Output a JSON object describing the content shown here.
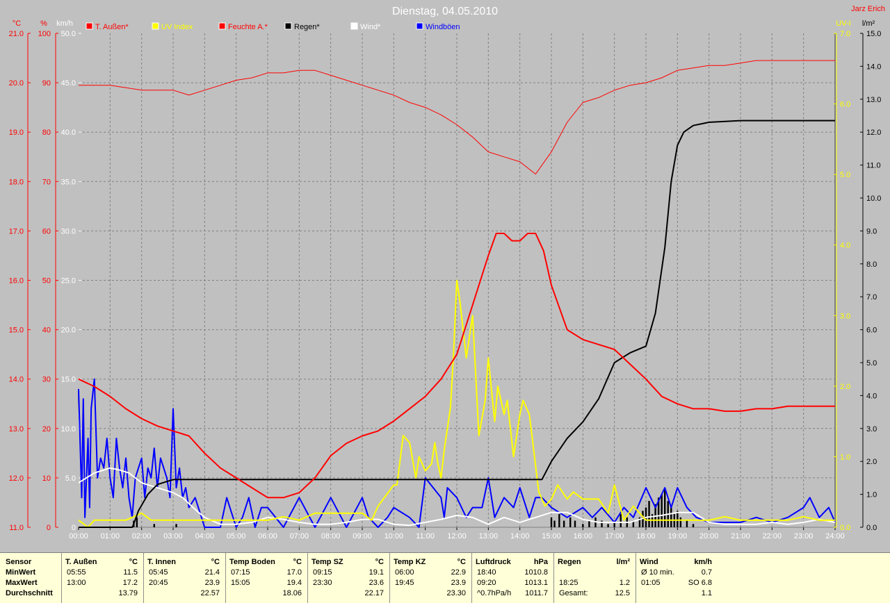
{
  "header": {
    "title": "Dienstag, 04.05.2010",
    "author": "Jarz Erich"
  },
  "colors": {
    "t_aussen": "#ff0000",
    "uv": "#ffff00",
    "feuchte": "#ff0000",
    "regen": "#000000",
    "wind": "#ffffff",
    "windboeen": "#0000ff",
    "background": "#c0c0c0",
    "grid": "#808080",
    "table_bg": "#ffffd8"
  },
  "chart_data": {
    "type": "line",
    "title": "Dienstag, 04.05.2010",
    "x_range": [
      "00:00",
      "24:00"
    ],
    "x_ticks": [
      "00:00",
      "01:00",
      "02:00",
      "03:00",
      "04:00",
      "05:00",
      "06:00",
      "07:00",
      "08:00",
      "09:00",
      "10:00",
      "11:00",
      "12:00",
      "13:00",
      "14:00",
      "15:00",
      "16:00",
      "17:00",
      "18:00",
      "19:00",
      "20:00",
      "21:00",
      "22:00",
      "23:00",
      "24:00"
    ],
    "grid": true,
    "legend_position": "top",
    "axes": [
      {
        "id": "temp",
        "label": "°C",
        "color": "#ff0000",
        "side": "left",
        "range": [
          11,
          21
        ],
        "ticks": [
          "11.0",
          "12.0",
          "13.0",
          "14.0",
          "15.0",
          "16.0",
          "17.0",
          "18.0",
          "19.0",
          "20.0",
          "21.0"
        ]
      },
      {
        "id": "hum",
        "label": "%",
        "color": "#ff0000",
        "side": "left",
        "range": [
          0,
          100
        ],
        "ticks": [
          "0",
          "10",
          "20",
          "30",
          "40",
          "50",
          "60",
          "70",
          "80",
          "90",
          "100"
        ]
      },
      {
        "id": "wind",
        "label": "km/h",
        "color": "#ffffff",
        "side": "left",
        "range": [
          0,
          50
        ],
        "ticks": [
          "0",
          "5.0",
          "10.0",
          "15.0",
          "20.0",
          "25.0",
          "30.0",
          "35.0",
          "40.0",
          "45.0",
          "50.0"
        ]
      },
      {
        "id": "uv",
        "label": "UV-I",
        "color": "#ffff00",
        "side": "right",
        "range": [
          0,
          7
        ],
        "ticks": [
          "0.0",
          "1.0",
          "2.0",
          "3.0",
          "4.0",
          "5.0",
          "6.0",
          "7.0"
        ]
      },
      {
        "id": "rain",
        "label": "l/m²",
        "color": "#000000",
        "side": "right",
        "range": [
          0,
          15
        ],
        "ticks": [
          "0.0",
          "1.0",
          "2.0",
          "3.0",
          "4.0",
          "5.0",
          "6.0",
          "7.0",
          "8.0",
          "9.0",
          "10.0",
          "11.0",
          "12.0",
          "13.0",
          "14.0",
          "15.0"
        ]
      }
    ],
    "series": [
      {
        "name": "T. Außen*",
        "axis": "temp",
        "color": "#ff0000",
        "width": 2,
        "x": [
          0,
          0.5,
          1,
          1.5,
          2,
          2.5,
          3,
          3.5,
          4,
          4.5,
          5,
          5.5,
          6,
          6.5,
          7,
          7.5,
          8,
          8.5,
          9,
          9.5,
          10,
          10.5,
          11,
          11.5,
          12,
          12.5,
          13,
          13.25,
          13.5,
          13.75,
          14,
          14.25,
          14.5,
          14.75,
          15,
          15.5,
          16,
          16.5,
          17,
          17.5,
          18,
          18.5,
          19,
          19.5,
          20,
          20.5,
          21,
          21.5,
          22,
          22.5,
          23,
          23.5,
          24
        ],
        "y": [
          14,
          13.85,
          13.65,
          13.4,
          13.2,
          13.05,
          12.95,
          12.85,
          12.5,
          12.2,
          12.0,
          11.8,
          11.6,
          11.6,
          11.7,
          12.0,
          12.45,
          12.7,
          12.85,
          12.95,
          13.15,
          13.4,
          13.65,
          14.0,
          14.5,
          15.5,
          16.5,
          16.95,
          16.95,
          16.8,
          16.8,
          16.95,
          16.95,
          16.6,
          15.9,
          15.0,
          14.8,
          14.7,
          14.6,
          14.3,
          14.0,
          13.65,
          13.5,
          13.4,
          13.4,
          13.35,
          13.35,
          13.4,
          13.4,
          13.45,
          13.45,
          13.45,
          13.45
        ]
      },
      {
        "name": "Feuchte A.*",
        "axis": "hum",
        "color": "#ff0000",
        "width": 1,
        "x": [
          0,
          0.5,
          1,
          1.5,
          2,
          2.5,
          3,
          3.5,
          4,
          4.5,
          5,
          5.5,
          6,
          6.5,
          7,
          7.5,
          8,
          8.5,
          9,
          9.5,
          10,
          10.5,
          11,
          11.5,
          12,
          12.5,
          13,
          13.5,
          14,
          14.5,
          15,
          15.5,
          16,
          16.5,
          17,
          17.5,
          18,
          18.5,
          19,
          19.5,
          20,
          20.5,
          21,
          21.5,
          22,
          22.5,
          23,
          23.5,
          24
        ],
        "y": [
          89.5,
          89.5,
          89.5,
          89,
          88.5,
          88.5,
          88.5,
          87.5,
          88.5,
          89.5,
          90.5,
          91,
          92,
          92,
          92.5,
          92.5,
          91.5,
          90.5,
          89.5,
          88.5,
          87.5,
          86,
          85,
          83.5,
          81.5,
          79,
          76,
          75,
          74,
          71.5,
          76,
          82,
          86,
          87,
          88.5,
          89.5,
          90,
          91,
          92.5,
          93,
          93.5,
          93.5,
          94,
          94.5,
          94.5,
          94.5,
          94.5,
          94.5,
          94.5
        ]
      },
      {
        "name": "Regen*",
        "axis": "rain",
        "color": "#000000",
        "width": 2,
        "x": [
          0,
          1.7,
          1.75,
          1.9,
          2.2,
          2.5,
          3,
          3.2,
          14.7,
          15.0,
          15.5,
          16,
          16.5,
          17,
          17.5,
          18,
          18.3,
          18.6,
          18.8,
          19,
          19.2,
          19.5,
          20,
          21,
          24
        ],
        "y": [
          0,
          0,
          0.1,
          0.5,
          1,
          1.3,
          1.45,
          1.45,
          1.45,
          2.0,
          2.7,
          3.2,
          3.9,
          5.0,
          5.3,
          5.5,
          6.5,
          8.5,
          10.5,
          11.6,
          12.0,
          12.2,
          12.3,
          12.35,
          12.35
        ]
      },
      {
        "name": "UV Index",
        "axis": "uv",
        "color": "#ffff00",
        "width": 2,
        "x": [
          0,
          0.3,
          0.5,
          1,
          1.5,
          2,
          2.3,
          3,
          4,
          5,
          6,
          6.5,
          7,
          7.5,
          8,
          8.5,
          9,
          9.3,
          9.5,
          10,
          10.1,
          10.3,
          10.5,
          10.7,
          10.8,
          11,
          11.2,
          11.3,
          11.4,
          11.5,
          11.6,
          11.8,
          11.9,
          12,
          12.1,
          12.3,
          12.5,
          12.7,
          12.9,
          13.0,
          13.2,
          13.3,
          13.5,
          13.6,
          13.8,
          14.0,
          14.1,
          14.3,
          14.6,
          14.8,
          15.0,
          15.2,
          15.5,
          15.7,
          16.0,
          16.5,
          16.8,
          17.0,
          17.3,
          17.6,
          18.0,
          18.5,
          19,
          19.5,
          20,
          20.5,
          21,
          21.5,
          22,
          22.5,
          23,
          23.5,
          24
        ],
        "y": [
          0.1,
          0,
          0.1,
          0.1,
          0.1,
          0.2,
          0.1,
          0.1,
          0.1,
          0.1,
          0.1,
          0.15,
          0.1,
          0.2,
          0.2,
          0.2,
          0.2,
          0.1,
          0.3,
          0.6,
          0.6,
          1.3,
          1.2,
          0.7,
          1.0,
          0.8,
          0.9,
          1.2,
          0.9,
          0.7,
          1.1,
          1.7,
          2.5,
          3.5,
          3.2,
          2.4,
          3.0,
          1.3,
          1.8,
          2.4,
          1.5,
          2.0,
          1.6,
          1.8,
          1.0,
          1.6,
          1.8,
          1.6,
          0.5,
          0.3,
          0.4,
          0.6,
          0.4,
          0.5,
          0.4,
          0.4,
          0.2,
          0.6,
          0.1,
          0.3,
          0.1,
          0.1,
          0.1,
          0.1,
          0.1,
          0.15,
          0.1,
          0.1,
          0.1,
          0.1,
          0.15,
          0.1,
          0.1
        ]
      },
      {
        "name": "Wind*",
        "axis": "wind",
        "color": "#ffffff",
        "width": 2,
        "x": [
          0,
          0.5,
          1,
          1.3,
          1.6,
          2,
          2.5,
          3,
          3.3,
          3.7,
          4,
          4.5,
          5,
          5.5,
          6,
          6.5,
          7,
          7.5,
          8,
          8.5,
          9,
          9.5,
          10,
          10.5,
          11,
          11.5,
          12,
          12.5,
          13,
          13.5,
          14,
          14.5,
          15,
          15.5,
          16,
          16.5,
          17,
          17.5,
          18,
          18.5,
          19,
          19.5,
          20,
          20.5,
          21,
          21.5,
          22,
          22.5,
          23,
          23.5,
          24
        ],
        "y": [
          4.5,
          5.5,
          6,
          5.8,
          5.5,
          4.5,
          4,
          3.5,
          3,
          1.8,
          1,
          0.3,
          0.3,
          0.5,
          1,
          0.8,
          0.5,
          0.3,
          0.3,
          0.5,
          0.8,
          0.8,
          0.3,
          0.2,
          0.5,
          0.8,
          1.2,
          1.0,
          0.3,
          1.0,
          0.5,
          1.0,
          1.5,
          1.5,
          0.8,
          0.5,
          0.5,
          0.5,
          1.0,
          1.2,
          1.5,
          1.5,
          0.5,
          0.3,
          0.3,
          0.3,
          0.5,
          0.3,
          0.5,
          0.8,
          0.5
        ]
      },
      {
        "name": "Windböen",
        "axis": "wind",
        "color": "#0000ff",
        "width": 2,
        "x": [
          0,
          0.1,
          0.15,
          0.2,
          0.3,
          0.35,
          0.4,
          0.5,
          0.6,
          0.7,
          0.8,
          0.9,
          1.0,
          1.1,
          1.2,
          1.3,
          1.4,
          1.5,
          1.6,
          1.7,
          1.8,
          1.9,
          2.0,
          2.1,
          2.2,
          2.3,
          2.4,
          2.5,
          2.6,
          2.7,
          2.8,
          2.9,
          3.0,
          3.1,
          3.2,
          3.3,
          3.4,
          3.5,
          3.7,
          3.9,
          4.0,
          4.5,
          4.7,
          5.0,
          5.2,
          5.4,
          5.6,
          5.8,
          6.0,
          6.5,
          7.0,
          7.5,
          8.0,
          8.5,
          9.0,
          9.2,
          9.5,
          9.8,
          10.0,
          10.5,
          10.8,
          11.0,
          11.5,
          11.6,
          11.7,
          12.0,
          12.3,
          12.5,
          12.8,
          13.0,
          13.1,
          13.2,
          13.5,
          13.8,
          14.0,
          14.3,
          14.5,
          14.7,
          15.0,
          15.5,
          16.0,
          16.3,
          16.6,
          17.0,
          17.3,
          17.6,
          18.0,
          18.3,
          18.6,
          18.8,
          19.0,
          19.3,
          19.6,
          20.0,
          20.5,
          21,
          21.5,
          22,
          22.5,
          23,
          23.2,
          23.5,
          23.8,
          24
        ],
        "y": [
          14,
          3,
          13,
          1,
          9,
          2,
          12,
          15,
          5,
          7,
          6,
          9,
          5,
          3,
          9,
          6,
          4,
          7,
          3,
          1,
          5,
          6,
          7,
          3,
          6,
          5,
          8,
          4,
          7,
          6,
          5,
          3,
          12,
          4,
          6,
          3,
          4,
          2,
          3,
          1,
          0,
          0,
          3,
          0,
          1,
          3,
          0,
          2,
          2,
          0,
          3,
          0,
          3,
          0,
          3,
          1,
          0,
          1,
          2,
          1,
          0,
          5,
          3,
          1,
          4,
          3,
          1,
          2,
          2,
          5,
          3,
          1,
          3,
          2,
          4,
          1,
          3,
          3,
          2,
          1,
          2,
          1,
          2,
          0.5,
          2,
          1,
          4,
          2,
          4,
          2,
          4,
          2,
          1,
          0.5,
          0.5,
          0.5,
          1,
          0.5,
          1,
          2,
          3,
          1,
          2,
          0.5
        ]
      }
    ],
    "regen_bars": {
      "name": "Regen*",
      "axis": "rain",
      "color": "#000000",
      "x": [
        1.75,
        1.85,
        2.4,
        3.1,
        15.0,
        15.1,
        15.25,
        15.4,
        15.6,
        15.75,
        16.0,
        16.2,
        16.4,
        16.6,
        16.8,
        17.0,
        17.2,
        17.4,
        17.6,
        17.8,
        17.9,
        18.0,
        18.1,
        18.2,
        18.3,
        18.4,
        18.5,
        18.6,
        18.7,
        18.8,
        18.9,
        19.0,
        19.1,
        19.3,
        19.5
      ],
      "y": [
        0.2,
        0.3,
        0.1,
        0.1,
        0.3,
        0.2,
        0.4,
        0.2,
        0.3,
        0.2,
        0.1,
        0.2,
        0.3,
        0.2,
        0.1,
        0.2,
        0.4,
        0.3,
        0.2,
        0.3,
        0.5,
        0.6,
        0.8,
        0.4,
        0.7,
        0.9,
        1.0,
        1.2,
        0.8,
        0.6,
        0.4,
        0.5,
        0.3,
        0.2,
        0.1
      ]
    },
    "legend": [
      "T. Außen*",
      "UV Index",
      "Feuchte A.*",
      "Regen*",
      "Wind*",
      "Windböen"
    ]
  },
  "table": {
    "row_labels": {
      "sensor": "Sensor",
      "min": "MinWert",
      "max": "MaxWert",
      "avg": "Durchschnitt"
    },
    "sections": [
      {
        "name": "T. Außen",
        "unit": "°C",
        "min_time": "05:55",
        "min": "11.5",
        "max_time": "13:00",
        "max": "17.2",
        "avg_label": "",
        "avg": "13.79"
      },
      {
        "name": "T. Innen",
        "unit": "°C",
        "min_time": "05:45",
        "min": "21.4",
        "max_time": "20:45",
        "max": "23.9",
        "avg_label": "",
        "avg": "22.57"
      },
      {
        "name": "Temp Boden",
        "unit": "°C",
        "min_time": "07:15",
        "min": "17.0",
        "max_time": "15:05",
        "max": "19.4",
        "avg_label": "",
        "avg": "18.06"
      },
      {
        "name": "Temp SZ",
        "unit": "°C",
        "min_time": "09:15",
        "min": "19.1",
        "max_time": "23:30",
        "max": "23.6",
        "avg_label": "",
        "avg": "22.17"
      },
      {
        "name": "Temp KZ",
        "unit": "°C",
        "min_time": "06:00",
        "min": "22.9",
        "max_time": "19:45",
        "max": "23.9",
        "avg_label": "",
        "avg": "23.30"
      },
      {
        "name": "Luftdruck",
        "unit": "hPa",
        "min_time": "18:40",
        "min": "1010.8",
        "max_time": "09:20",
        "max": "1013.1",
        "avg_label": "^0.7hPa/h",
        "avg": "1011.7"
      },
      {
        "name": "Regen",
        "unit": "l/m²",
        "min_time": "",
        "min": "",
        "max_time": "18:25",
        "max": "1.2",
        "avg_label": "Gesamt:",
        "avg": "12.5"
      },
      {
        "name": "Wind",
        "unit": "km/h",
        "min_time": "Ø 10 min.",
        "min": "0.7",
        "max_time": "01:05",
        "max": "SO 6.8",
        "avg_label": "",
        "avg": "1.1"
      }
    ]
  }
}
